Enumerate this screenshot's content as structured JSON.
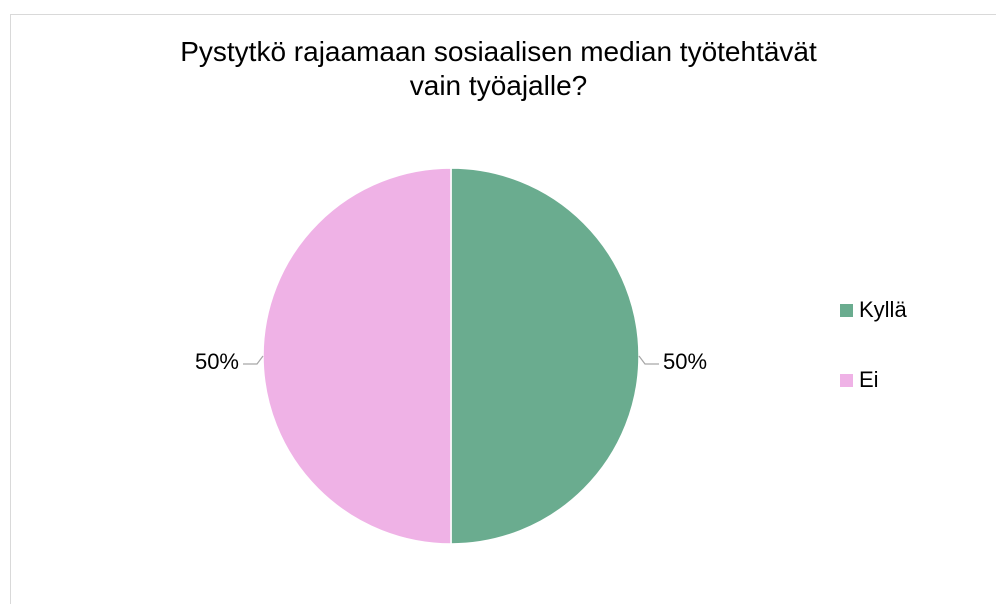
{
  "chart_data": {
    "type": "pie",
    "title": "Pystytkö  rajaamaan sosiaalisen median työtehtävät vain työajalle?",
    "title_lines": [
      "Pystytkö  rajaamaan sosiaalisen median työtehtävät",
      "vain työajalle?"
    ],
    "categories": [
      "Kyllä",
      "Ei"
    ],
    "values": [
      50,
      50
    ],
    "data_labels": [
      "50%",
      "50%"
    ],
    "colors": [
      "#6aac8f",
      "#efb2e6"
    ],
    "legend_position": "right"
  }
}
